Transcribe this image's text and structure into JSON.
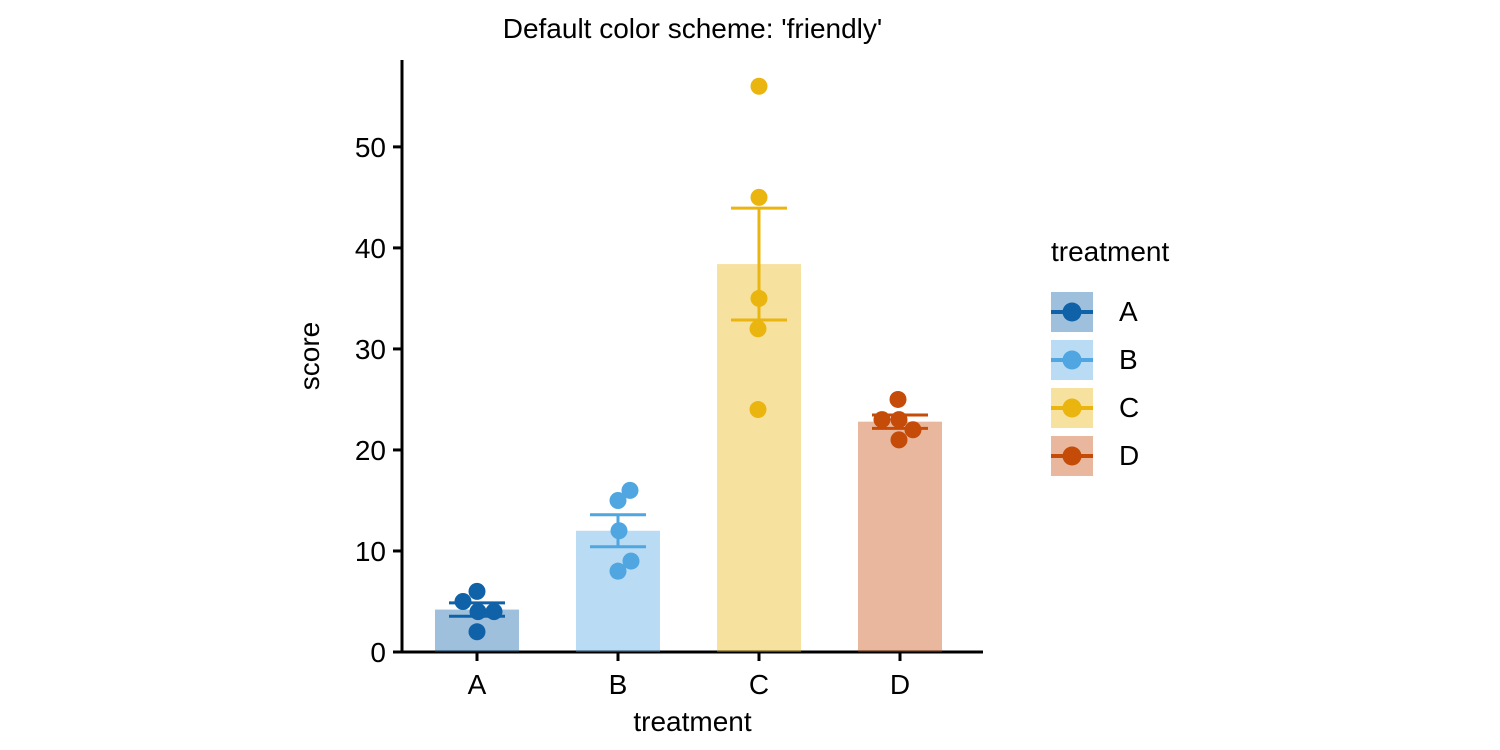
{
  "chart_data": {
    "type": "bar",
    "overlay": "scatter points with SEM error bars",
    "title": "Default color scheme: 'friendly'",
    "xlabel": "treatment",
    "ylabel": "score",
    "legend_title": "treatment",
    "legend_position": "center right, outside axes",
    "grid": false,
    "background": "#ffffff",
    "axis_color": "#000000",
    "bar_opacity": 0.4,
    "categories": [
      "A",
      "B",
      "C",
      "D"
    ],
    "yticks": [
      0,
      10,
      20,
      30,
      40,
      50
    ],
    "ylim": [
      0,
      58.6
    ],
    "series": [
      {
        "name": "A",
        "color": "#1062A8",
        "mean": 4.2,
        "sem": 0.66,
        "points": [
          6,
          5,
          4,
          4,
          2
        ],
        "jitter": [
          0,
          -14,
          1,
          17,
          0
        ]
      },
      {
        "name": "B",
        "color": "#4FA6E1",
        "mean": 12.0,
        "sem": 1.58,
        "points": [
          16,
          15,
          12,
          9,
          8
        ],
        "jitter": [
          12,
          0,
          1,
          13,
          0
        ]
      },
      {
        "name": "C",
        "color": "#EBB50F",
        "mean": 38.4,
        "sem": 5.54,
        "points": [
          56,
          45,
          35,
          32,
          24
        ],
        "jitter": [
          0,
          0,
          0,
          -1,
          -1
        ]
      },
      {
        "name": "D",
        "color": "#C54B09",
        "mean": 22.8,
        "sem": 0.66,
        "points": [
          25,
          23,
          23,
          22,
          21
        ],
        "jitter": [
          -2,
          -18,
          -1,
          13,
          -1
        ]
      }
    ]
  }
}
